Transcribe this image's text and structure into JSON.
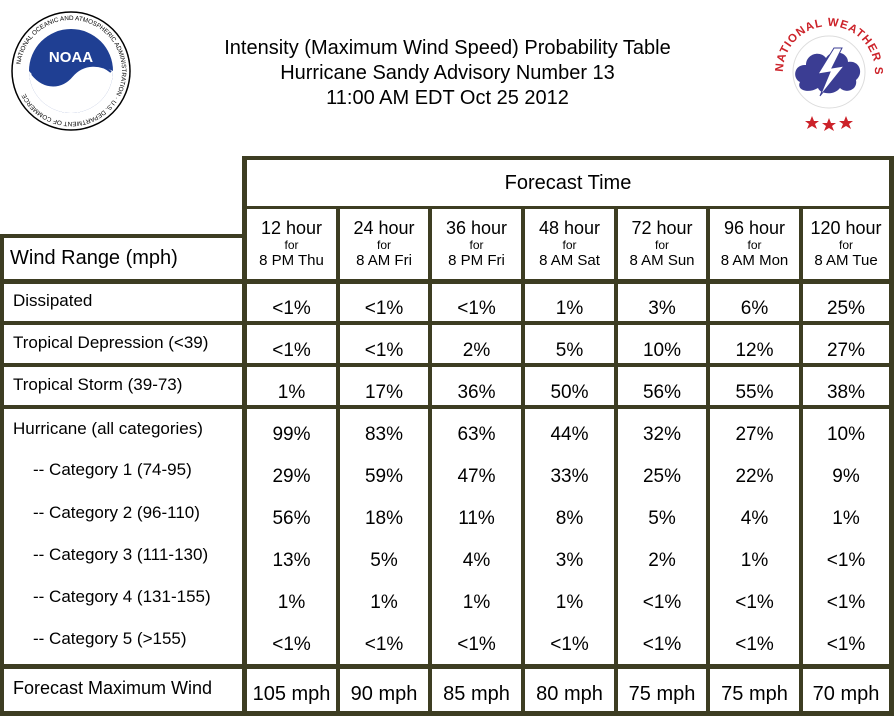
{
  "header": {
    "title_line1": "Intensity (Maximum Wind Speed) Probability Table",
    "title_line2": "Hurricane Sandy Advisory Number 13",
    "title_line3": "11:00 AM EDT Oct 25 2012"
  },
  "logos": {
    "noaa_text": "NOAA",
    "noaa_ring": "NATIONAL OCEANIC AND ATMOSPHERIC ADMINISTRATION · U.S. DEPARTMENT OF COMMERCE",
    "nws_ring": "NATIONAL WEATHER SERVICE"
  },
  "table": {
    "forecast_time_label": "Forecast Time",
    "wind_range_label": "Wind Range (mph)",
    "columns": [
      {
        "hour": "12 hour",
        "for": "for",
        "date": "8 PM Thu"
      },
      {
        "hour": "24 hour",
        "for": "for",
        "date": "8 AM Fri"
      },
      {
        "hour": "36 hour",
        "for": "for",
        "date": "8 PM Fri"
      },
      {
        "hour": "48 hour",
        "for": "for",
        "date": "8 AM Sat"
      },
      {
        "hour": "72 hour",
        "for": "for",
        "date": "8 AM Sun"
      },
      {
        "hour": "96 hour",
        "for": "for",
        "date": "8 AM Mon"
      },
      {
        "hour": "120 hour",
        "for": "for",
        "date": "8 AM Tue"
      }
    ],
    "rows": [
      {
        "label": "Dissipated",
        "values": [
          "<1%",
          "<1%",
          "<1%",
          "1%",
          "3%",
          "6%",
          "25%"
        ]
      },
      {
        "label": "Tropical Depression (<39)",
        "values": [
          "<1%",
          "<1%",
          "2%",
          "5%",
          "10%",
          "12%",
          "27%"
        ]
      },
      {
        "label": "Tropical Storm (39-73)",
        "values": [
          "1%",
          "17%",
          "36%",
          "50%",
          "56%",
          "55%",
          "38%"
        ]
      },
      {
        "label": "Hurricane (all categories)",
        "values": [
          "99%",
          "83%",
          "63%",
          "44%",
          "32%",
          "27%",
          "10%"
        ]
      },
      {
        "label": "-- Category 1 (74-95)",
        "values": [
          "29%",
          "59%",
          "47%",
          "33%",
          "25%",
          "22%",
          "9%"
        ]
      },
      {
        "label": "-- Category 2 (96-110)",
        "values": [
          "56%",
          "18%",
          "11%",
          "8%",
          "5%",
          "4%",
          "1%"
        ]
      },
      {
        "label": "-- Category 3 (111-130)",
        "values": [
          "13%",
          "5%",
          "4%",
          "3%",
          "2%",
          "1%",
          "<1%"
        ]
      },
      {
        "label": "-- Category 4 (131-155)",
        "values": [
          "1%",
          "1%",
          "1%",
          "1%",
          "<1%",
          "<1%",
          "<1%"
        ]
      },
      {
        "label": "-- Category 5 (>155)",
        "values": [
          "<1%",
          "<1%",
          "<1%",
          "<1%",
          "<1%",
          "<1%",
          "<1%"
        ]
      }
    ],
    "max_wind": {
      "label": "Forecast Maximum Wind",
      "values": [
        "105 mph",
        "90 mph",
        "85 mph",
        "80 mph",
        "75 mph",
        "75 mph",
        "70 mph"
      ]
    }
  },
  "colors": {
    "border": "#3d3d22",
    "nws_red": "#cc2229",
    "noaa_blue": "#1f3f93"
  }
}
